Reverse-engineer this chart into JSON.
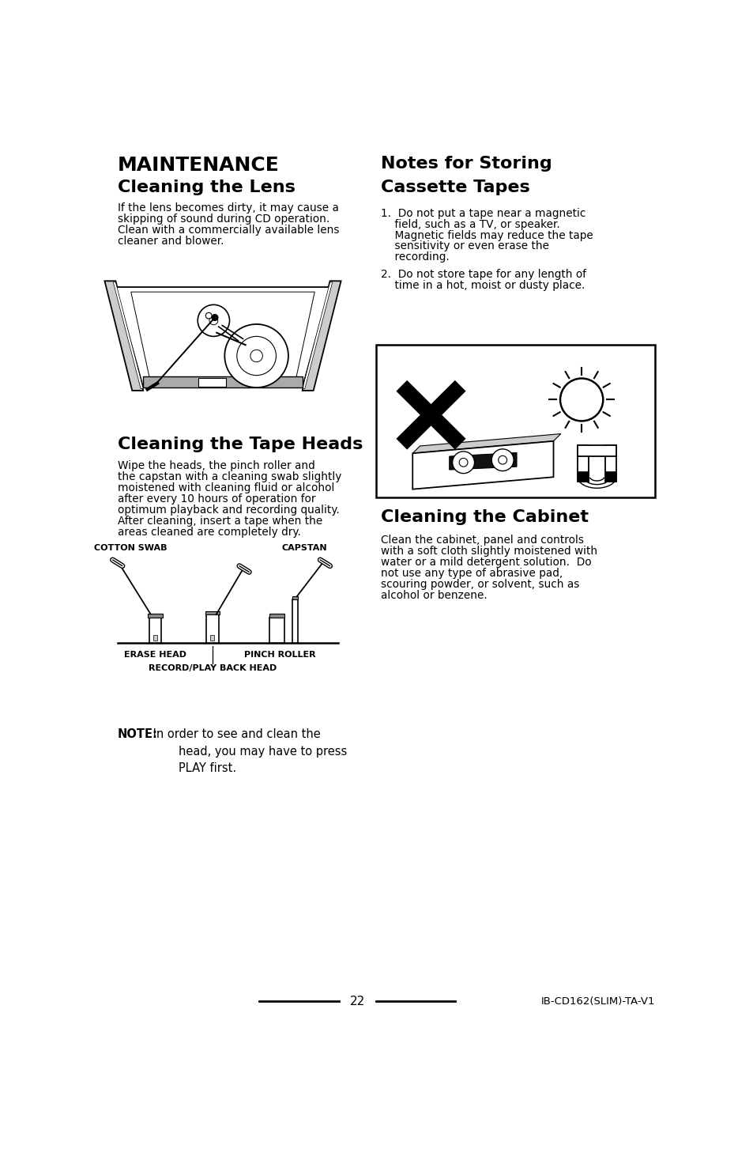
{
  "page_bg": "#ffffff",
  "page_num": "22",
  "footer_right": "IB-CD162(SLIM)-TA-V1",
  "maintenance_title": "MAINTENANCE",
  "lens_title": "Cleaning the Lens",
  "lens_body_lines": [
    "If the lens becomes dirty, it may cause a",
    "skipping of sound during CD operation.",
    "Clean with a commercially available lens",
    "cleaner and blower."
  ],
  "tape_title": "Cleaning the Tape Heads",
  "tape_body_lines": [
    "Wipe the heads, the pinch roller and",
    "the capstan with a cleaning swab slightly",
    "moistened with cleaning fluid or alcohol",
    "after every 10 hours of operation for",
    "optimum playback and recording quality.",
    "After cleaning, insert a tape when the",
    "areas cleaned are completely dry."
  ],
  "note_bold": "NOTE:",
  "note_lines": [
    " In order to see and clean the",
    "        head, you may have to press",
    "        PLAY first."
  ],
  "notes_title1": "Notes for Storing",
  "notes_title2": "Cassette Tapes",
  "notes_item1_lines": [
    "1.  Do not put a tape near a magnetic",
    "    field, such as a TV, or speaker.",
    "    Magnetic fields may reduce the tape",
    "    sensitivity or even erase the",
    "    recording."
  ],
  "notes_item2_lines": [
    "2.  Do not store tape for any length of",
    "    time in a hot, moist or dusty place."
  ],
  "cabinet_title": "Cleaning the Cabinet",
  "cabinet_body_lines": [
    "Clean the cabinet, panel and controls",
    "with a soft cloth slightly moistened with",
    "water or a mild detergent solution.  Do",
    "not use any type of abrasive pad,",
    "scouring powder, or solvent, such as",
    "alcohol or benzene."
  ],
  "label_cotton": "COTTON SWAB",
  "label_capstan": "CAPSTAN",
  "label_erase": "ERASE HEAD",
  "label_pinch": "PINCH ROLLER",
  "label_record": "RECORD/PLAY BACK HEAD"
}
